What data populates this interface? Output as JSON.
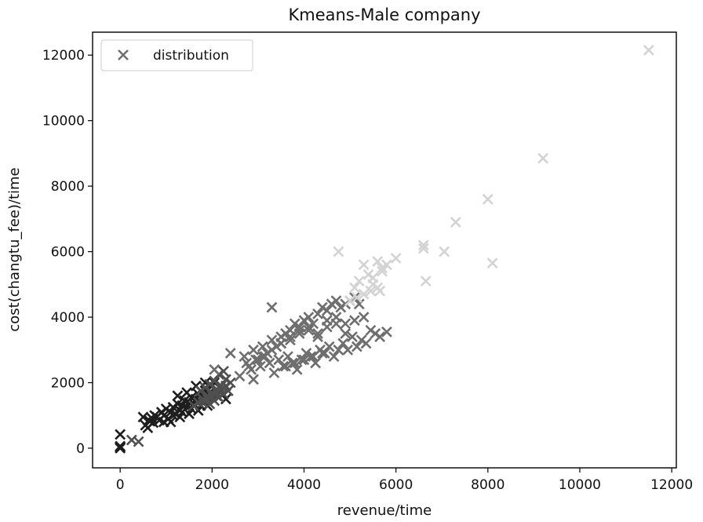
{
  "chart_data": {
    "type": "scatter",
    "title": "Kmeans-Male company",
    "xlabel": "revenue/time",
    "ylabel": "cost(changtu_fee)/time",
    "xlim": [
      -600,
      12100
    ],
    "ylim": [
      -600,
      12700
    ],
    "xticks": [
      0,
      2000,
      4000,
      6000,
      8000,
      10000,
      12000
    ],
    "yticks": [
      0,
      2000,
      4000,
      6000,
      8000,
      10000,
      12000
    ],
    "grid": false,
    "legend": {
      "position": "top-left",
      "entries": [
        "distribution"
      ]
    },
    "colors": {
      "legend_marker": "#707070",
      "cluster_1": "#1e1e1e",
      "cluster_2": "#4f4f4f",
      "cluster_3": "#6e6e6e",
      "cluster_4": "#d3d3d3"
    },
    "series": [
      {
        "name": "distribution",
        "marker": "x",
        "color": "#1e1e1e",
        "x": [
          0,
          0,
          0,
          0,
          500,
          550,
          600,
          620,
          650,
          700,
          720,
          750,
          800,
          850,
          900,
          950,
          1000,
          1050,
          1100,
          1150,
          1200,
          1250,
          1300,
          1350,
          1400,
          1450,
          1500,
          1550,
          1600,
          1650,
          1700,
          1750,
          1800,
          1850,
          1900,
          1950,
          2000,
          1100,
          1300,
          1500,
          1700,
          1900,
          2100,
          2200,
          2300,
          1250,
          1450,
          1650,
          1850,
          2050,
          950,
          1150,
          1350,
          1550,
          1750
        ],
        "y": [
          0,
          30,
          60,
          420,
          950,
          700,
          620,
          850,
          820,
          900,
          780,
          1000,
          950,
          850,
          1100,
          1000,
          1200,
          900,
          1100,
          1250,
          1050,
          1350,
          1150,
          1300,
          1450,
          1250,
          1400,
          1550,
          1350,
          1500,
          1650,
          1450,
          1600,
          1750,
          1550,
          1700,
          1900,
          800,
          950,
          1050,
          1150,
          1300,
          1600,
          1800,
          1500,
          1600,
          1700,
          1900,
          2000,
          2000,
          800,
          1000,
          1100,
          1200,
          1300
        ]
      },
      {
        "name": "distribution",
        "marker": "x",
        "color": "#4f4f4f",
        "x": [
          250,
          400,
          1800,
          1900,
          2000,
          2100,
          2200,
          2300,
          2400,
          1950,
          2050,
          2150,
          2250,
          2350,
          1600,
          1700,
          1800,
          1900,
          2000,
          2100,
          2200,
          2300,
          1750,
          1850,
          1950,
          2050,
          2150,
          2250
        ],
        "y": [
          250,
          200,
          1400,
          1500,
          1600,
          1700,
          1800,
          1900,
          2000,
          1350,
          1450,
          1550,
          1650,
          1750,
          1300,
          1400,
          1500,
          1600,
          1700,
          1800,
          1900,
          2100,
          1750,
          1850,
          1950,
          2050,
          2250,
          2350
        ]
      },
      {
        "name": "distribution",
        "marker": "x",
        "color": "#6e6e6e",
        "x": [
          2050,
          2400,
          2600,
          2700,
          2800,
          2900,
          3000,
          3100,
          3200,
          3300,
          3400,
          3500,
          3600,
          3700,
          3800,
          3900,
          4000,
          4100,
          4200,
          4300,
          4400,
          4500,
          4600,
          4700,
          4800,
          4900,
          5000,
          5100,
          5200,
          5300,
          3300,
          2750,
          2850,
          2950,
          3050,
          3150,
          3250,
          3350,
          3450,
          3550,
          3650,
          3750,
          3850,
          3950,
          4050,
          4150,
          4250,
          4350,
          4450,
          4550,
          4650,
          4750,
          4850,
          4950,
          5050,
          5150,
          5250,
          5350,
          5450,
          5550,
          5650,
          5800,
          3500,
          3700,
          3900,
          4100,
          4300,
          4500,
          4700,
          4900,
          5100,
          2900,
          3100,
          3300,
          3500,
          3700,
          3900,
          4100,
          4300,
          4500,
          4700,
          4900,
          3600,
          3800,
          4000,
          4200,
          4400
        ],
        "y": [
          2400,
          2900,
          2200,
          2800,
          2500,
          3000,
          2700,
          3100,
          2900,
          3300,
          3100,
          3400,
          3500,
          3600,
          3800,
          3700,
          3900,
          4000,
          3800,
          4100,
          4300,
          4200,
          4400,
          4500,
          4300,
          4400,
          4500,
          4600,
          4400,
          4000,
          4300,
          2600,
          2400,
          2700,
          2500,
          2800,
          2600,
          2300,
          2700,
          2500,
          2800,
          2600,
          2400,
          2700,
          2900,
          2800,
          2600,
          3000,
          2900,
          3100,
          2800,
          3000,
          3200,
          3000,
          3400,
          3100,
          3300,
          3200,
          3600,
          3500,
          3400,
          3550,
          3200,
          3300,
          3500,
          3600,
          3400,
          3700,
          3800,
          3500,
          3900,
          2100,
          2800,
          3000,
          3200,
          3400,
          3600,
          3700,
          3500,
          3900,
          4000,
          3800,
          2500,
          2600,
          2700,
          2800,
          2900
        ]
      },
      {
        "name": "distribution",
        "marker": "x",
        "color": "#d3d3d3",
        "x": [
          4750,
          5100,
          5200,
          5300,
          5400,
          5500,
          5600,
          5650,
          5700,
          5800,
          6000,
          5300,
          5500,
          5700,
          6600,
          6600,
          6650,
          7050,
          7300,
          8000,
          8100,
          9200,
          11500,
          5000,
          5150,
          5450,
          5600
        ],
        "y": [
          6000,
          4900,
          5100,
          5600,
          5300,
          5000,
          5700,
          4800,
          5500,
          5600,
          5800,
          4700,
          5200,
          5400,
          6200,
          6100,
          5100,
          6000,
          6900,
          7600,
          5650,
          8850,
          12150,
          4500,
          4600,
          4800,
          4900
        ]
      }
    ]
  }
}
